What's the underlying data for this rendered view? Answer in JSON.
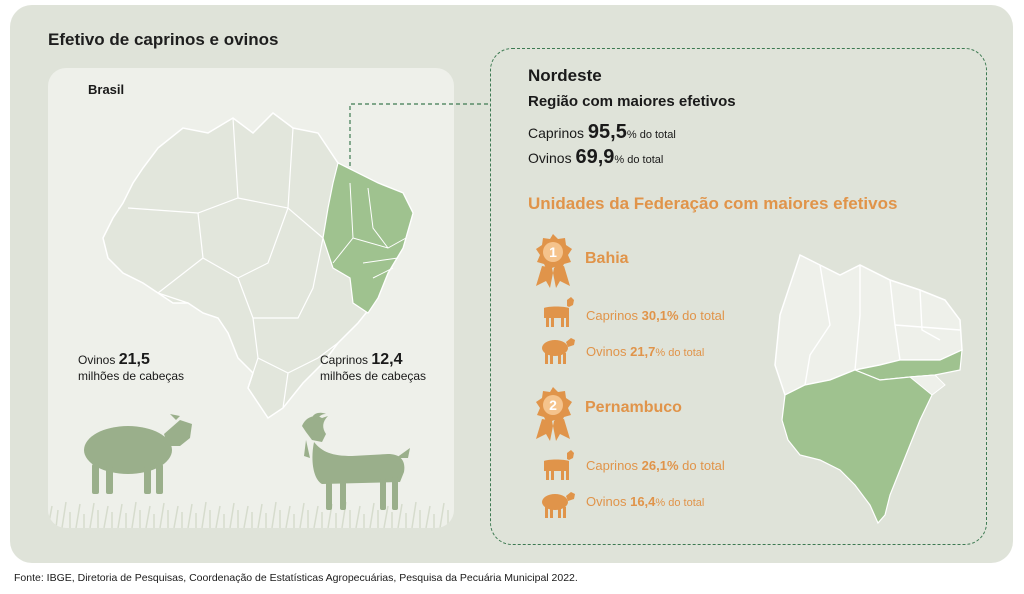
{
  "title": "Efetivo de caprinos e ovinos",
  "brasil": {
    "label": "Brasil",
    "ovinos": {
      "label": "Ovinos",
      "value": "21,5",
      "unit": "milhões de cabeças"
    },
    "caprinos": {
      "label": "Caprinos",
      "value": "12,4",
      "unit": "milhões de cabeças"
    }
  },
  "nordeste": {
    "title": "Nordeste",
    "subtitle": "Região com maiores efetivos",
    "caprinos": {
      "label": "Caprinos",
      "value": "95,5",
      "suffix": "% do total"
    },
    "ovinos": {
      "label": "Ovinos",
      "value": "69,9",
      "suffix": "% do total"
    }
  },
  "uf": {
    "title": "Unidades da Federação com maiores efetivos",
    "ranking": [
      {
        "rank": "1",
        "name": "Bahia",
        "caprinos": {
          "label": "Caprinos",
          "value": "30,1%",
          "suffix": "do total"
        },
        "ovinos": {
          "label": "Ovinos",
          "value": "21,7",
          "suffix": "% do total"
        }
      },
      {
        "rank": "2",
        "name": "Pernambuco",
        "caprinos": {
          "label": "Caprinos",
          "value": "26,1%",
          "suffix": "do total"
        },
        "ovinos": {
          "label": "Ovinos",
          "value": "16,4",
          "suffix": "% do total"
        }
      }
    ]
  },
  "colors": {
    "background": "#dfe3d9",
    "card": "#eef0ea",
    "highlight_green": "#9fc28f",
    "accent_orange": "#e0944a",
    "dashed_green": "#3d7a52"
  },
  "source": "Fonte: IBGE, Diretoria de Pesquisas, Coordenação de Estatísticas Agropecuárias, Pesquisa da Pecuária Municipal 2022."
}
